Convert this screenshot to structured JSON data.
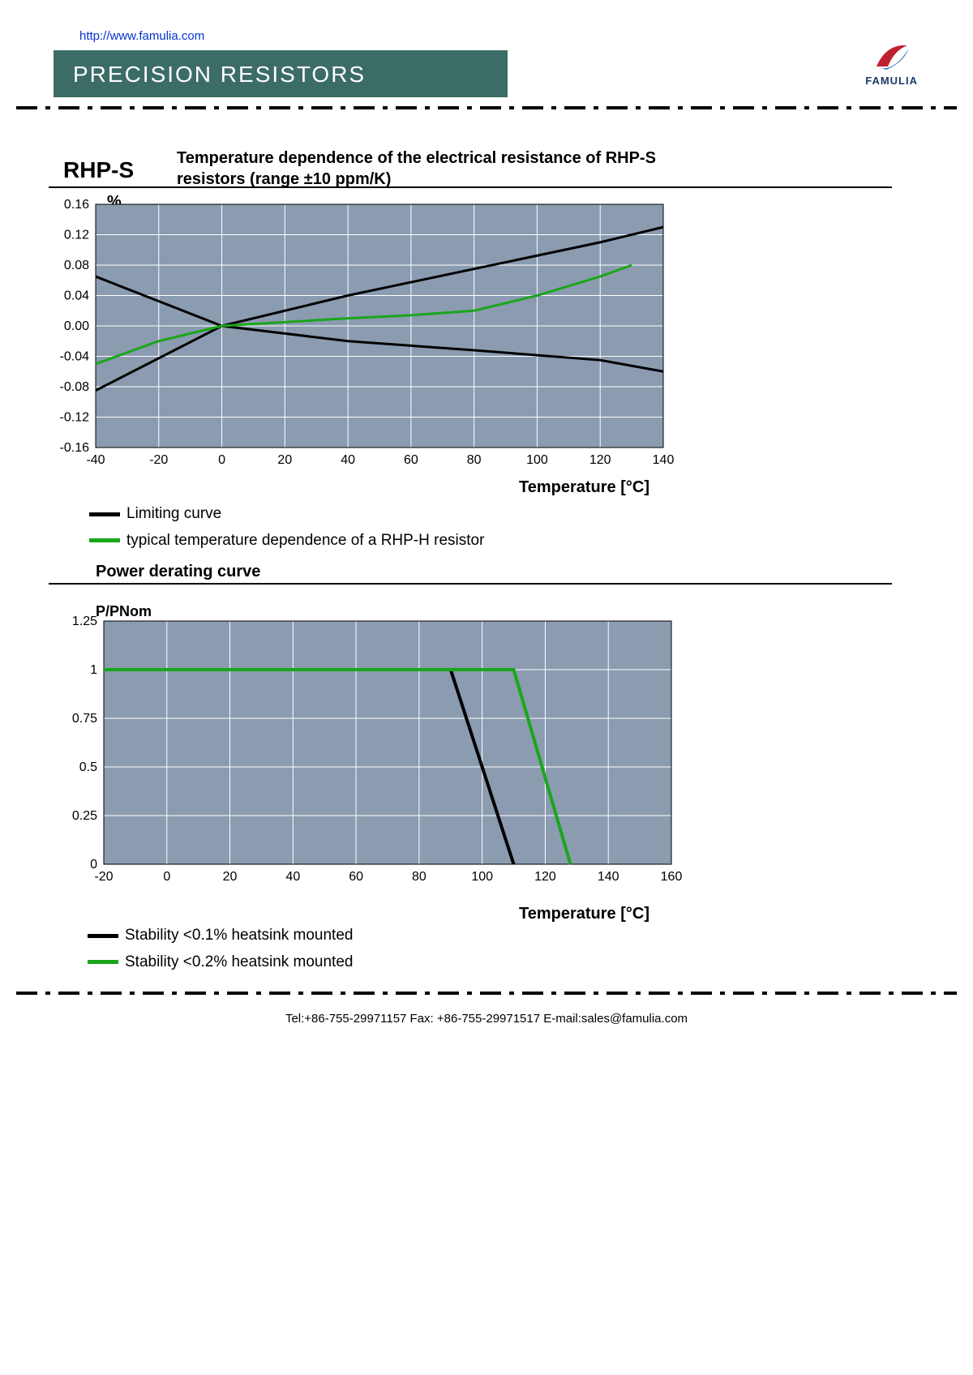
{
  "url": "http://www.famulia.com",
  "brand": "FAMULIA",
  "page_title": "PRECISION RESISTORS",
  "section_label": "RHP-S",
  "chart1": {
    "title": "Temperature dependence of the electrical resistance of RHP-S resistors (range ±10  ppm/K)",
    "ylabel": "%",
    "xlabel": "Temperature [°C]",
    "xlim": [
      -40,
      140
    ],
    "ylim": [
      -0.16,
      0.16
    ],
    "xticks": [
      -40,
      -20,
      0,
      20,
      40,
      60,
      80,
      100,
      120,
      140
    ],
    "yticks": [
      0.16,
      0.12,
      0.08,
      0.04,
      "0.00",
      -0.04,
      -0.08,
      -0.12,
      -0.16
    ],
    "plot_bg": "#8b9bb0",
    "grid_color": "#ffffff",
    "series": {
      "limit_upper": {
        "color": "#000000",
        "width": 3,
        "x": [
          -40,
          0,
          40,
          80,
          120,
          140
        ],
        "y": [
          -0.085,
          0,
          0.04,
          0.075,
          0.11,
          0.13
        ]
      },
      "limit_lower": {
        "color": "#000000",
        "width": 3,
        "x": [
          -40,
          0,
          40,
          80,
          120,
          140
        ],
        "y": [
          0.065,
          0,
          -0.02,
          -0.032,
          -0.045,
          -0.06
        ]
      },
      "typical": {
        "color": "#1aa61a",
        "width": 3,
        "x": [
          -40,
          -20,
          0,
          20,
          40,
          60,
          80,
          100,
          120,
          130
        ],
        "y": [
          -0.05,
          -0.02,
          0,
          0.005,
          0.01,
          0.014,
          0.02,
          0.04,
          0.065,
          0.08
        ]
      }
    },
    "legend": [
      {
        "color": "#000000",
        "label": "Limiting curve"
      },
      {
        "color": "#1aa61a",
        "label": "typical temperature dependence of a RHP-H resistor"
      }
    ]
  },
  "chart2": {
    "title": "Power derating curve",
    "ylabel": "P/PNom",
    "xlabel": "Temperature [°C]",
    "xlim": [
      -20,
      160
    ],
    "ylim": [
      0,
      1.25
    ],
    "xticks": [
      -20,
      0,
      20,
      40,
      60,
      80,
      100,
      120,
      140,
      160
    ],
    "yticks": [
      1.25,
      1,
      0.75,
      0.5,
      0.25,
      0
    ],
    "plot_bg": "#8b9bb0",
    "grid_color": "#ffffff",
    "series": {
      "s01": {
        "color": "#000000",
        "width": 4,
        "x": [
          -20,
          90,
          110
        ],
        "y": [
          1,
          1,
          0
        ]
      },
      "s02": {
        "color": "#1aa61a",
        "width": 4,
        "x": [
          -20,
          110,
          128
        ],
        "y": [
          1,
          1,
          0
        ]
      }
    },
    "legend": [
      {
        "color": "#000000",
        "label": "Stability <0.1% heatsink mounted"
      },
      {
        "color": "#1aa61a",
        "label": "Stability <0.2% heatsink mounted"
      }
    ]
  },
  "footer": "Tel:+86-755-29971157  Fax: +86-755-29971517    E-mail:sales@famulia.com"
}
